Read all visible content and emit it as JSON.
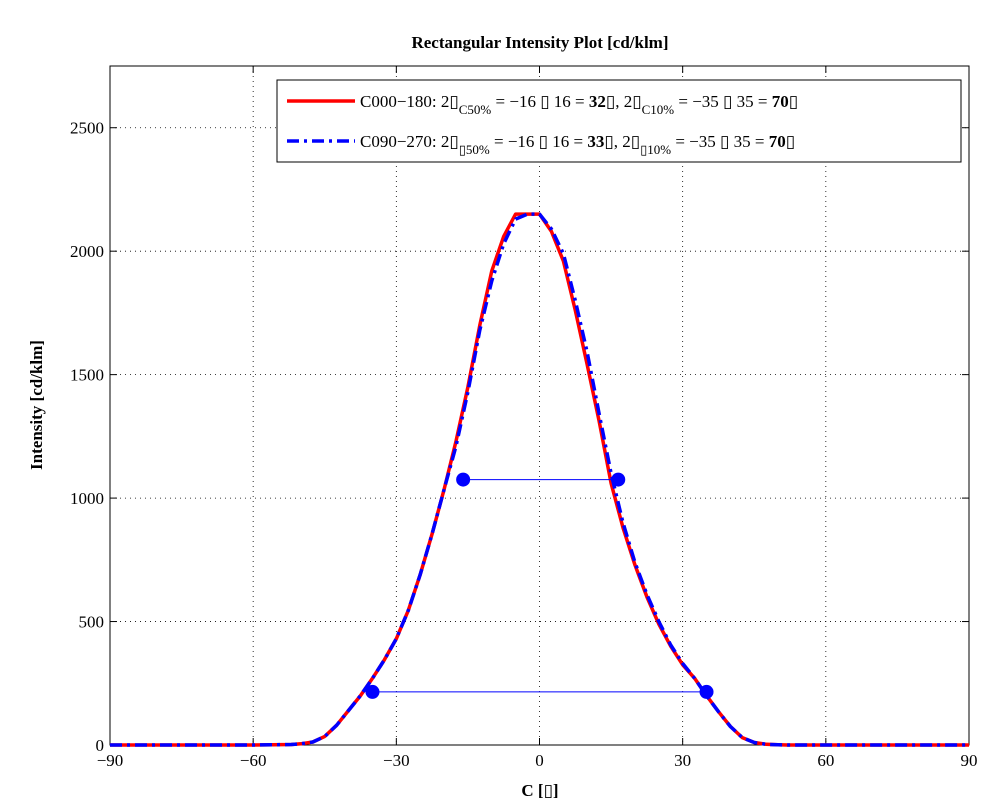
{
  "chart_data": {
    "type": "line",
    "title": "Rectangular Intensity Plot [cd/klm]",
    "xlabel": "C [▯]",
    "ylabel": "Intensity [cd/klm]",
    "xlim": [
      -90,
      90
    ],
    "ylim": [
      0,
      2750
    ],
    "x_ticks": [
      -90,
      -60,
      -30,
      0,
      30,
      60,
      90
    ],
    "x_tick_labels": [
      "−90",
      "−60",
      "−30",
      "0",
      "30",
      "60",
      "90"
    ],
    "y_ticks": [
      0,
      500,
      1000,
      1500,
      2000,
      2500
    ],
    "y_tick_labels": [
      "0",
      "500",
      "1000",
      "1500",
      "2000",
      "2500"
    ],
    "grid": true,
    "legend_position": "top-right",
    "series": [
      {
        "name": "C000−180",
        "color": "#ff0000",
        "style": "solid",
        "x": [
          -90,
          -75,
          -60,
          -52,
          -50,
          -47.5,
          -45,
          -42.5,
          -40,
          -37.5,
          -35,
          -32.5,
          -30,
          -27.5,
          -25,
          -22.5,
          -20,
          -17.5,
          -15,
          -12.5,
          -10,
          -7.5,
          -5,
          -2.5,
          0,
          2.5,
          5,
          7.5,
          10,
          12.5,
          15,
          17.5,
          20,
          22.5,
          25,
          27.5,
          30,
          32.5,
          35,
          37.5,
          40,
          42.5,
          45,
          47.5,
          50,
          52,
          60,
          75,
          90
        ],
        "y": [
          0,
          0,
          0,
          2,
          5,
          12,
          35,
          80,
          140,
          200,
          270,
          345,
          430,
          545,
          690,
          855,
          1035,
          1230,
          1450,
          1700,
          1920,
          2060,
          2150,
          2150,
          2150,
          2080,
          1960,
          1760,
          1540,
          1310,
          1060,
          880,
          730,
          600,
          490,
          400,
          325,
          270,
          200,
          135,
          75,
          30,
          10,
          3,
          1,
          0,
          0,
          0,
          0
        ]
      },
      {
        "name": "C090−270",
        "color": "#0000ff",
        "style": "dashdot",
        "x": [
          -90,
          -75,
          -60,
          -52,
          -50,
          -47.5,
          -45,
          -42.5,
          -40,
          -37.5,
          -35,
          -32.5,
          -30,
          -27.5,
          -25,
          -22.5,
          -20,
          -17.5,
          -15,
          -12.5,
          -10,
          -7.5,
          -5,
          -2.5,
          0,
          2.5,
          5,
          7.5,
          10,
          12.5,
          15,
          17.5,
          20,
          22.5,
          25,
          27.5,
          30,
          32.5,
          35,
          37.5,
          40,
          42.5,
          45,
          47.5,
          50,
          52,
          60,
          75,
          90
        ],
        "y": [
          0,
          0,
          0,
          2,
          5,
          12,
          35,
          80,
          140,
          200,
          270,
          345,
          430,
          545,
          690,
          855,
          1035,
          1210,
          1430,
          1680,
          1880,
          2030,
          2130,
          2150,
          2150,
          2090,
          1990,
          1800,
          1590,
          1340,
          1100,
          900,
          740,
          610,
          500,
          405,
          330,
          270,
          200,
          135,
          75,
          30,
          10,
          3,
          1,
          0,
          0,
          0,
          0
        ]
      }
    ],
    "annotations": {
      "half_max": {
        "y": 1075,
        "x1": -16,
        "x2": 16.5,
        "color": "#0000ff"
      },
      "tenth_max": {
        "y": 215,
        "x1": -35,
        "x2": 35,
        "color": "#0000ff"
      }
    },
    "legend": [
      {
        "line": "C000−180: 2▯",
        "sub1": "C50%",
        "mid1": " = −16 ▯   16 = ",
        "bold1": "32",
        "mid2": "▯, 2▯",
        "sub2": "C10%",
        "mid3": " = −35 ▯   35 = ",
        "bold2": "70",
        "tail": "▯"
      },
      {
        "line": "C090−270: 2▯",
        "sub1": "▯50%",
        "mid1": " = −16 ▯   16 = ",
        "bold1": "33",
        "mid2": "▯, 2▯",
        "sub2": "▯10%",
        "mid3": " = −35 ▯   35 = ",
        "bold2": "70",
        "tail": "▯"
      }
    ]
  }
}
